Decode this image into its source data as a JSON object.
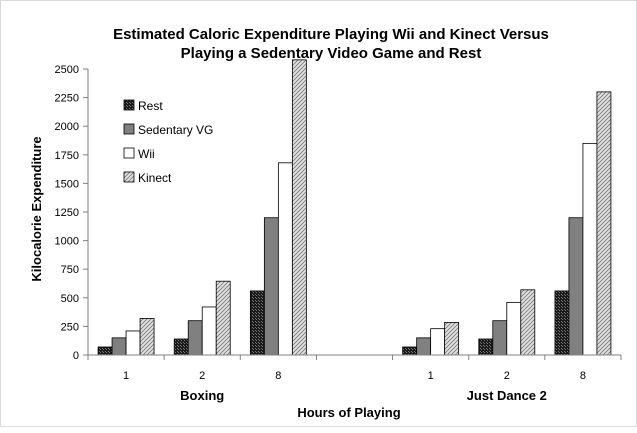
{
  "chart_data": {
    "type": "bar",
    "title_lines": [
      "Estimated Caloric Expenditure Playing Wii and Kinect Versus",
      "Playing a Sedentary Video Game and Rest"
    ],
    "xlabel": "Hours of Playing",
    "ylabel": "Kilocalorie Expenditure",
    "ylim": [
      0,
      2500
    ],
    "yticks": [
      0,
      250,
      500,
      750,
      1000,
      1250,
      1500,
      1750,
      2000,
      2250,
      2500
    ],
    "groups": [
      {
        "name": "Boxing",
        "categories": [
          "1",
          "2",
          "8"
        ]
      },
      {
        "name": "",
        "categories": []
      },
      {
        "name": "Just Dance 2",
        "categories": [
          "1",
          "2",
          "8"
        ]
      }
    ],
    "series": [
      {
        "name": "Rest",
        "pattern": "checker",
        "values": [
          70,
          140,
          560,
          70,
          140,
          560
        ]
      },
      {
        "name": "Sedentary VG",
        "pattern": "solid-gray",
        "values": [
          150,
          300,
          1200,
          150,
          300,
          1200
        ]
      },
      {
        "name": "Wii",
        "pattern": "white",
        "values": [
          210,
          420,
          1680,
          230,
          460,
          1850
        ]
      },
      {
        "name": "Kinect",
        "pattern": "diagonal",
        "values": [
          320,
          645,
          2580,
          285,
          570,
          2300
        ]
      }
    ],
    "grid": false,
    "legend_position": "top-left",
    "colors": {
      "rest": "#1a1a1a",
      "sedentary": "#808080",
      "wii": "#ffffff",
      "kinect": "#d0d0d0",
      "axis": "#808080"
    }
  }
}
